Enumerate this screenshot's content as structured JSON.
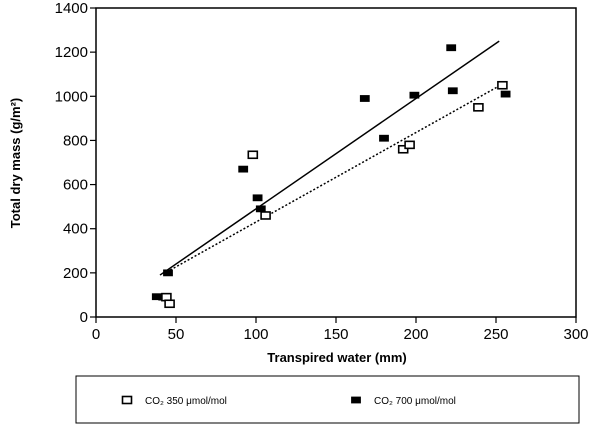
{
  "chart_data": {
    "type": "scatter",
    "xlabel": "Transpired water (mm)",
    "ylabel": "Total dry mass (g/m²)",
    "xlim": [
      0,
      300
    ],
    "ylim": [
      0,
      1400
    ],
    "xticks": [
      0,
      50,
      100,
      150,
      200,
      250,
      300
    ],
    "yticks": [
      0,
      200,
      400,
      600,
      800,
      1000,
      1200,
      1400
    ],
    "grid": false,
    "legend_position": "bottom",
    "series": [
      {
        "name": "CO₂ 350 μmol/mol",
        "marker": "open-square",
        "color": "#000000",
        "points": [
          [
            44,
            90
          ],
          [
            46,
            60
          ],
          [
            98,
            735
          ],
          [
            106,
            460
          ],
          [
            192,
            760
          ],
          [
            196,
            780
          ],
          [
            239,
            950
          ],
          [
            254,
            1050
          ]
        ],
        "fit_line": {
          "style": "dotted",
          "x": [
            42,
            254
          ],
          "y": [
            195,
            1055
          ]
        }
      },
      {
        "name": "CO₂ 700 μmol/mol",
        "marker": "filled-square",
        "color": "#000000",
        "points": [
          [
            38,
            92
          ],
          [
            42,
            90
          ],
          [
            45,
            200
          ],
          [
            92,
            670
          ],
          [
            101,
            540
          ],
          [
            103,
            490
          ],
          [
            168,
            990
          ],
          [
            180,
            810
          ],
          [
            199,
            1005
          ],
          [
            222,
            1220
          ],
          [
            223,
            1025
          ],
          [
            256,
            1010
          ]
        ],
        "fit_line": {
          "style": "solid",
          "x": [
            40,
            252
          ],
          "y": [
            190,
            1250
          ]
        }
      }
    ]
  }
}
